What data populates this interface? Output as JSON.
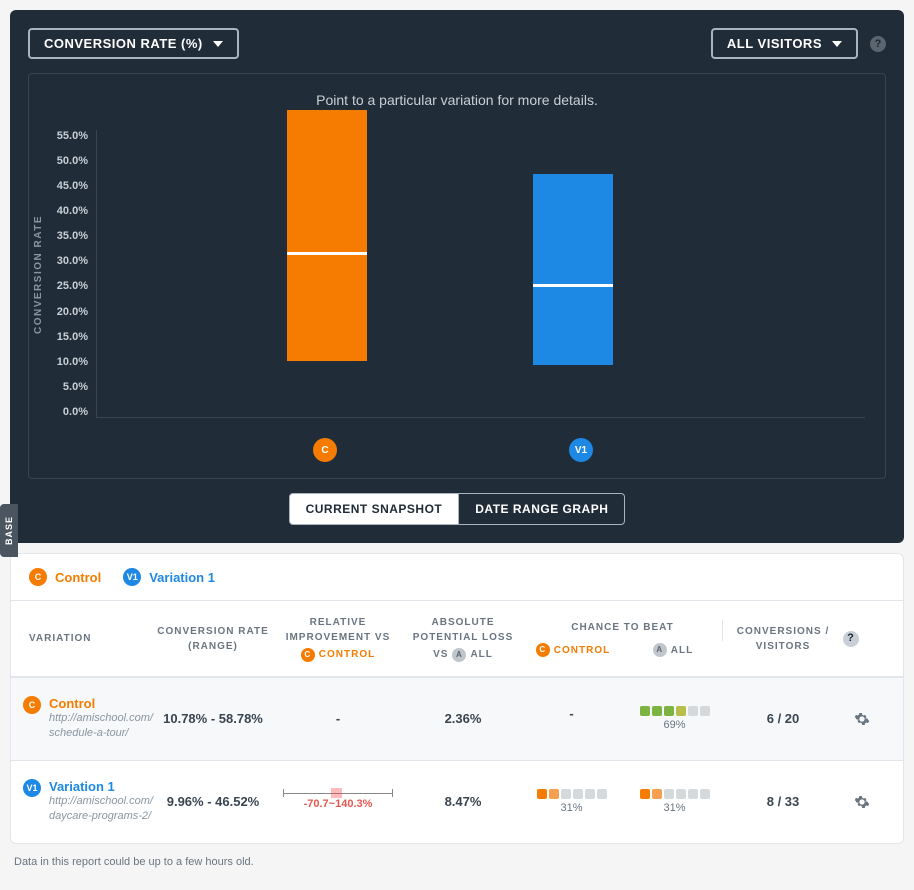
{
  "top": {
    "metric_dropdown": "CONVERSION RATE (%)",
    "visitors_dropdown": "ALL VISITORS"
  },
  "chart": {
    "hint": "Point to a particular variation for more details.",
    "y_label": "CONVERSION RATE",
    "y_ticks": [
      "55.0%",
      "50.0%",
      "45.0%",
      "40.0%",
      "35.0%",
      "30.0%",
      "25.0%",
      "20.0%",
      "15.0%",
      "10.0%",
      "5.0%",
      "0.0%"
    ],
    "ymin": 0,
    "ymax": 55,
    "bars": [
      {
        "id": "C",
        "label": "C",
        "left_pct": 30,
        "color": "#f57c00",
        "low": 10.78,
        "mid": 31,
        "high": 58.78
      },
      {
        "id": "V1",
        "label": "V1",
        "left_pct": 62,
        "color": "#1e88e5",
        "low": 9.96,
        "mid": 25,
        "high": 46.52
      }
    ],
    "plot_bg": "#202c38"
  },
  "toggle": {
    "left": "CURRENT SNAPSHOT",
    "right": "DATE RANGE GRAPH",
    "active": "left"
  },
  "legend": [
    {
      "badge": "C",
      "color": "#f57c00",
      "label": "Control",
      "label_color": "#f57c00"
    },
    {
      "badge": "V1",
      "color": "#1e88e5",
      "label": "Variation 1",
      "label_color": "#1e88e5"
    }
  ],
  "headers": {
    "variation": "VARIATION",
    "conv": "CONVERSION RATE (RANGE)",
    "improvement": "RELATIVE IMPROVEMENT VS",
    "improvement_pill": "CONTROL",
    "loss": "ABSOLUTE POTENTIAL LOSS",
    "loss_sub": "VS",
    "loss_pill": "ALL",
    "ctb": "CHANCE TO BEAT",
    "ctb_control": "CONTROL",
    "ctb_all": "ALL",
    "conversions": "CONVERSIONS / VISITORS"
  },
  "rows": [
    {
      "id": "C",
      "color": "#f57c00",
      "name": "Control",
      "name_color": "#f57c00",
      "url": "http://amischool.com/schedule-a-tour/",
      "range": "10.78% - 58.78%",
      "improvement": "-",
      "loss": "2.36%",
      "ctb_control": null,
      "ctb_all": {
        "pct": "69%",
        "squares": [
          "#7cb342",
          "#7cb342",
          "#7cb342",
          "#b8be4a",
          "#d6d9dc",
          "#d6d9dc"
        ]
      },
      "conversions": "6 / 20"
    },
    {
      "id": "V1",
      "color": "#1e88e5",
      "name": "Variation 1",
      "name_color": "#1e88e5",
      "url": "http://amischool.com/daycare-programs-2/",
      "range": "9.96% - 46.52%",
      "improvement": "-70.7~140.3%",
      "loss": "8.47%",
      "ctb_control": {
        "pct": "31%",
        "squares": [
          "#f57c00",
          "#f5a050",
          "#d6d9dc",
          "#d6d9dc",
          "#d6d9dc",
          "#d6d9dc"
        ]
      },
      "ctb_all": {
        "pct": "31%",
        "squares": [
          "#f57c00",
          "#f5a050",
          "#d6d9dc",
          "#d6d9dc",
          "#d6d9dc",
          "#d6d9dc"
        ]
      },
      "conversions": "8 / 33"
    }
  ],
  "footer": "Data in this report could be up to a few hours old.",
  "base_tab": "BASE"
}
